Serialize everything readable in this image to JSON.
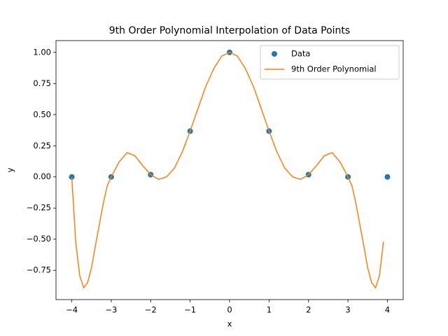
{
  "chart_data": {
    "type": "scatter+line",
    "title": "9th Order Polynomial Interpolation of Data Points",
    "x_label": "x",
    "y_label": "y",
    "xlim": [
      -4.4,
      4.4
    ],
    "ylim": [
      -0.985,
      1.0945
    ],
    "xticks": [
      {
        "value": -4,
        "label": "−4"
      },
      {
        "value": -3,
        "label": "−3"
      },
      {
        "value": -2,
        "label": "−2"
      },
      {
        "value": -1,
        "label": "−1"
      },
      0,
      1,
      2,
      3,
      4
    ],
    "yticks": [
      {
        "value": -0.75,
        "label": "−0.75"
      },
      {
        "value": -0.5,
        "label": "−0.50"
      },
      {
        "value": -0.25,
        "label": "−0.25"
      },
      {
        "value": 0,
        "label": "0.00"
      },
      {
        "value": 0.25,
        "label": "0.25"
      },
      {
        "value": 0.5,
        "label": "0.50"
      },
      {
        "value": 0.75,
        "label": "0.75"
      },
      {
        "value": 1,
        "label": "1.00"
      }
    ],
    "legend": "upper right",
    "series": [
      {
        "name": "Data",
        "kind": "scatter",
        "color": "#1f77b4",
        "x": [
          -4,
          -3,
          -2,
          -1,
          0,
          1,
          2,
          3,
          4
        ],
        "values": [
          0,
          0.0001,
          0.0183,
          0.3679,
          1,
          0.3679,
          0.0183,
          0.0001,
          0
        ]
      },
      {
        "name": "9th Order Polynomial",
        "kind": "line",
        "color": "#ff7f0e",
        "x": [
          -4,
          -3.9,
          -3.8,
          -3.7,
          -3.6,
          -3.5,
          -3.4,
          -3.3,
          -3.2,
          -3.1,
          -3.0,
          -2.8,
          -2.6,
          -2.4,
          -2.2,
          -2.0,
          -1.8,
          -1.6,
          -1.4,
          -1.2,
          -1.0,
          -0.8,
          -0.6,
          -0.4,
          -0.2,
          0,
          0.2,
          0.4,
          0.6,
          0.8,
          1.0,
          1.2,
          1.4,
          1.6,
          1.8,
          2.0,
          2.2,
          2.4,
          2.6,
          2.8,
          3.0,
          3.1,
          3.2,
          3.3,
          3.4,
          3.5,
          3.6,
          3.7,
          3.8,
          3.9
        ],
        "values": [
          0,
          -0.52,
          -0.79,
          -0.89,
          -0.85,
          -0.73,
          -0.55,
          -0.38,
          -0.21,
          -0.07,
          0,
          0.12,
          0.195,
          0.17,
          0.09,
          0.018,
          -0.02,
          0.0,
          0.07,
          0.2,
          0.368,
          0.55,
          0.73,
          0.87,
          0.97,
          1.0,
          0.97,
          0.87,
          0.73,
          0.55,
          0.368,
          0.2,
          0.07,
          0.0,
          -0.02,
          0.018,
          0.09,
          0.17,
          0.195,
          0.12,
          0,
          -0.07,
          -0.21,
          -0.38,
          -0.55,
          -0.73,
          -0.85,
          -0.89,
          -0.79,
          -0.52
        ]
      }
    ]
  }
}
